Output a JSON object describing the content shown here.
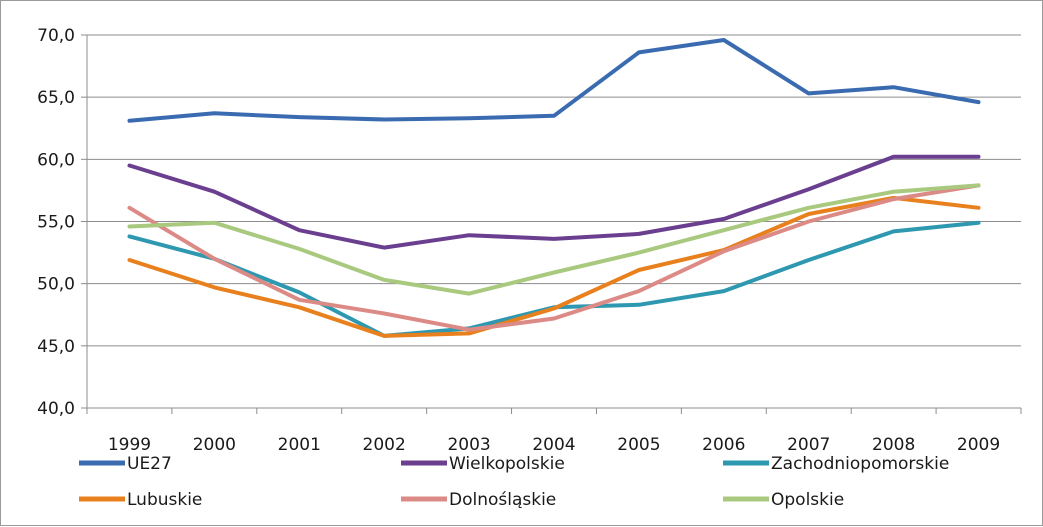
{
  "chart_data": {
    "type": "line",
    "title": "",
    "xlabel": "",
    "ylabel": "",
    "x": [
      "1999",
      "2000",
      "2001",
      "2002",
      "2003",
      "2004",
      "2005",
      "2006",
      "2007",
      "2008",
      "2009"
    ],
    "ylim": [
      40,
      70
    ],
    "yticks": [
      "40,0",
      "45,0",
      "50,0",
      "55,0",
      "60,0",
      "65,0",
      "70,0"
    ],
    "grid": true,
    "legend_position": "bottom",
    "series": [
      {
        "name": "UE27",
        "color": "#3a6bb0",
        "values": [
          63.1,
          63.7,
          63.4,
          63.2,
          63.3,
          63.5,
          68.6,
          69.6,
          65.3,
          65.8,
          64.6
        ]
      },
      {
        "name": "Wielkopolskie",
        "color": "#6b3f8f",
        "values": [
          59.5,
          57.4,
          54.3,
          52.9,
          53.9,
          53.6,
          54.0,
          55.2,
          57.6,
          60.2,
          60.2
        ]
      },
      {
        "name": "Zachodniopomorskie",
        "color": "#2e98b0",
        "values": [
          53.8,
          52.0,
          49.3,
          45.8,
          46.4,
          48.1,
          48.3,
          49.4,
          51.9,
          54.2,
          54.9
        ]
      },
      {
        "name": "Lubuskie",
        "color": "#e8801e",
        "values": [
          51.9,
          49.7,
          48.1,
          45.8,
          46.0,
          48.0,
          51.1,
          52.7,
          55.6,
          56.9,
          56.1
        ]
      },
      {
        "name": "Dolnośląskie",
        "color": "#dc8a86",
        "values": [
          56.1,
          52.0,
          48.7,
          47.6,
          46.3,
          47.2,
          49.4,
          52.6,
          55.0,
          56.8,
          57.9
        ]
      },
      {
        "name": "Opolskie",
        "color": "#a8c97e",
        "values": [
          54.6,
          54.9,
          52.8,
          50.3,
          49.2,
          50.9,
          52.5,
          54.3,
          56.1,
          57.4,
          57.9
        ]
      }
    ]
  }
}
